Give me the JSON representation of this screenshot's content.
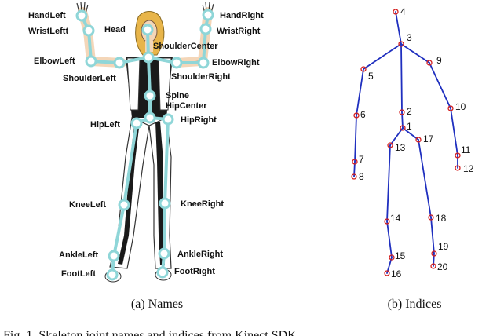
{
  "panels": {
    "names": {
      "caption": "(a) Names",
      "joints": [
        {
          "id": "hand-left",
          "label": "HandLeft"
        },
        {
          "id": "wrist-left",
          "label": "WristLeftt"
        },
        {
          "id": "head",
          "label": "Head"
        },
        {
          "id": "hand-right",
          "label": "HandRight"
        },
        {
          "id": "wrist-right",
          "label": "WristRight"
        },
        {
          "id": "shoulder-center",
          "label": "ShoulderCenter"
        },
        {
          "id": "elbow-left",
          "label": "ElbowLeft"
        },
        {
          "id": "elbow-right",
          "label": "ElbowRight"
        },
        {
          "id": "shoulder-left",
          "label": "ShoulderLeft"
        },
        {
          "id": "shoulder-right",
          "label": "ShoulderRight"
        },
        {
          "id": "spine",
          "label": "Spine"
        },
        {
          "id": "hip-center",
          "label": "HipCenter"
        },
        {
          "id": "hip-left",
          "label": "HipLeft"
        },
        {
          "id": "hip-right",
          "label": "HipRight"
        },
        {
          "id": "knee-left",
          "label": "KneeLeft"
        },
        {
          "id": "knee-right",
          "label": "KneeRight"
        },
        {
          "id": "ankle-left",
          "label": "AnkleLeft"
        },
        {
          "id": "ankle-right",
          "label": "AnkleRight"
        },
        {
          "id": "foot-left",
          "label": "FootLeft"
        },
        {
          "id": "foot-right",
          "label": "FootRight"
        }
      ]
    },
    "indices": {
      "caption": "(b) Indices",
      "labels": [
        "1",
        "2",
        "3",
        "4",
        "5",
        "6",
        "7",
        "8",
        "9",
        "10",
        "11",
        "12",
        "13",
        "14",
        "15",
        "16",
        "17",
        "18",
        "19",
        "20"
      ],
      "bone_color": "#1f2fbf",
      "joint_color": "#d42020"
    }
  },
  "figure_caption": "Fig. 1. Skeleton joint names and indices from Kinect SDK"
}
